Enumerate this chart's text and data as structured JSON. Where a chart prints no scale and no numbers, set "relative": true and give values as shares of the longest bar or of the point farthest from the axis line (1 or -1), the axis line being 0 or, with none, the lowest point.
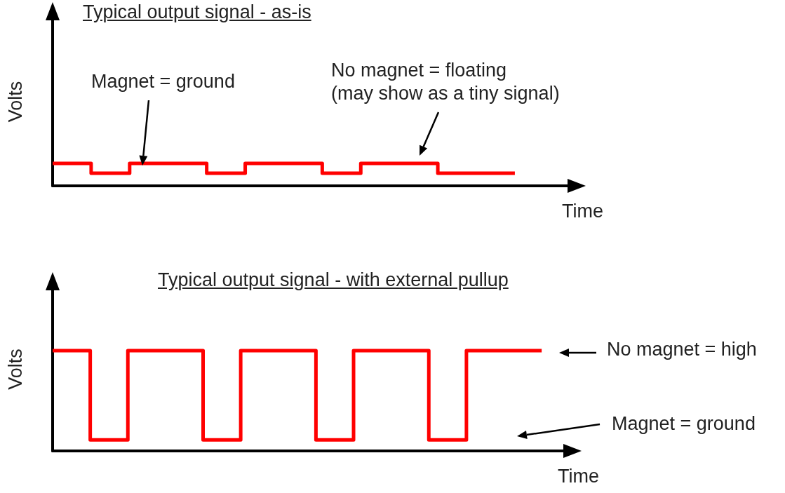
{
  "chart_data": [
    {
      "type": "step",
      "title": "Typical output signal  - as-is",
      "xlabel": "Time",
      "ylabel": "Volts",
      "relative": true,
      "marker": "none",
      "categories": [
        null,
        null,
        null,
        null,
        null,
        null,
        null,
        null,
        null,
        null,
        null,
        null,
        null
      ],
      "series": [
        {
          "color": "#ff0000",
          "values": [
            1,
            1,
            0.56,
            1,
            1,
            0.56,
            1,
            1,
            0.56,
            1,
            1,
            0.56,
            0.56
          ]
        }
      ],
      "annotations": [
        "Magnet = ground",
        "No magnet = floating\n(may show as a tiny signal)"
      ]
    },
    {
      "type": "step",
      "title": "Typical output signal - with external pullup",
      "xlabel": "Time",
      "ylabel": "Volts",
      "relative": true,
      "marker": "none",
      "categories": [
        null,
        null,
        null,
        null,
        null,
        null,
        null,
        null,
        null,
        null,
        null,
        null,
        null,
        null
      ],
      "series": [
        {
          "color": "#ff0000",
          "values": [
            1,
            1,
            0.11,
            1,
            1,
            0.11,
            1,
            1,
            0.11,
            1,
            1,
            0.11,
            1,
            1
          ]
        }
      ],
      "annotations": [
        "No magnet = high",
        "Magnet = ground"
      ]
    }
  ]
}
